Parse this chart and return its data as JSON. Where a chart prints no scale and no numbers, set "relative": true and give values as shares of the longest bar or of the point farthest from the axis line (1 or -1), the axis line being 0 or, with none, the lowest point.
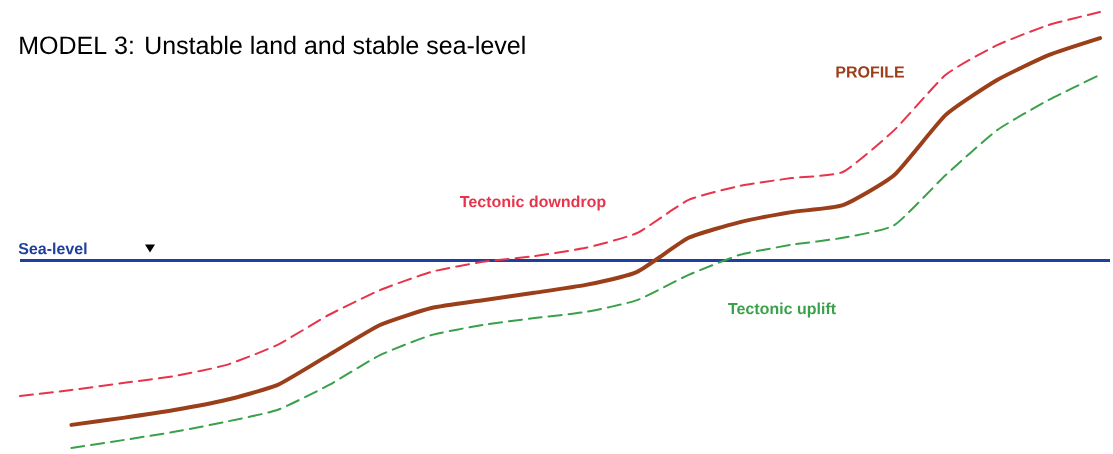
{
  "chart_data": {
    "type": "line",
    "title": "MODEL 3:  Unstable land and stable sea-level",
    "relative": true,
    "legend": false,
    "categories": [
      null,
      null,
      null,
      null,
      null,
      null,
      null,
      null,
      null,
      null,
      null,
      null,
      null,
      null,
      null,
      null,
      null,
      null,
      null,
      null,
      null,
      null
    ],
    "series": [
      {
        "name": "PROFILE",
        "color": "#9b3f1a",
        "line_style": "solid",
        "values": [
          null,
          0.053,
          0.069,
          0.087,
          0.11,
          0.144,
          0.213,
          0.282,
          0.321,
          0.339,
          0.356,
          0.374,
          0.404,
          0.482,
          0.518,
          0.541,
          0.557,
          0.626,
          0.764,
          0.844,
          0.901,
          0.94
        ]
      },
      {
        "name": "Tectonic downdrop",
        "color": "#e8344a",
        "line_style": "dashed",
        "values": [
          0.119,
          0.133,
          0.149,
          0.165,
          0.19,
          0.236,
          0.305,
          0.362,
          0.404,
          0.427,
          0.44,
          0.459,
          0.493,
          0.569,
          0.601,
          0.619,
          0.633,
          0.729,
          0.856,
          0.924,
          0.97,
          1.0
        ]
      },
      {
        "name": "Tectonic uplift",
        "color": "#3aa04a",
        "line_style": "dashed",
        "values": [
          null,
          0.0,
          0.018,
          0.037,
          0.06,
          0.087,
          0.144,
          0.213,
          0.259,
          0.282,
          0.298,
          0.312,
          0.339,
          0.397,
          0.443,
          0.466,
          0.482,
          0.511,
          0.626,
          0.729,
          0.798,
          0.856
        ]
      }
    ],
    "ref_lines": [
      {
        "axis": "y",
        "value": 0.43,
        "label": "Sea-level",
        "color": "#1f3f9f",
        "line_style": "solid"
      }
    ]
  }
}
